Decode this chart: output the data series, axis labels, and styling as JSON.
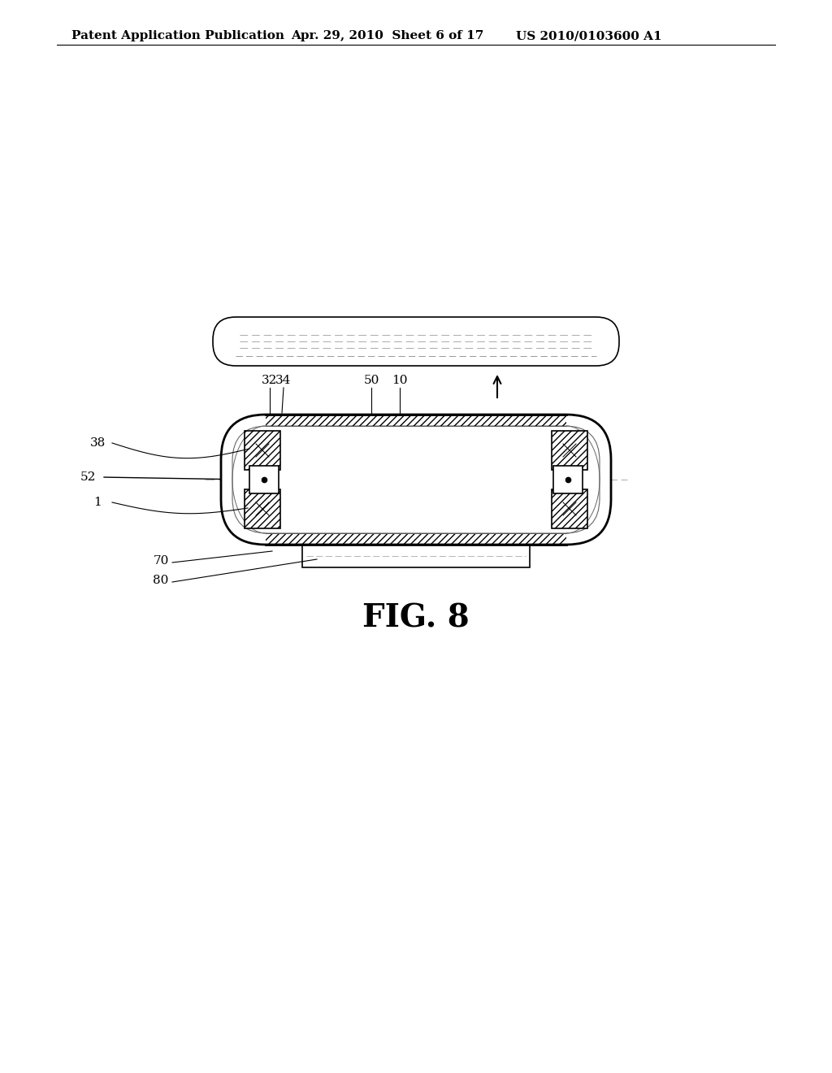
{
  "bg_color": "#ffffff",
  "header_left": "Patent Application Publication",
  "header_mid": "Apr. 29, 2010  Sheet 6 of 17",
  "header_right": "US 2010/0103600 A1",
  "fig_label": "FIG. 8",
  "fig_label_fontsize": 28,
  "header_fontsize": 11,
  "label_fontsize": 11,
  "line_color": "#000000"
}
